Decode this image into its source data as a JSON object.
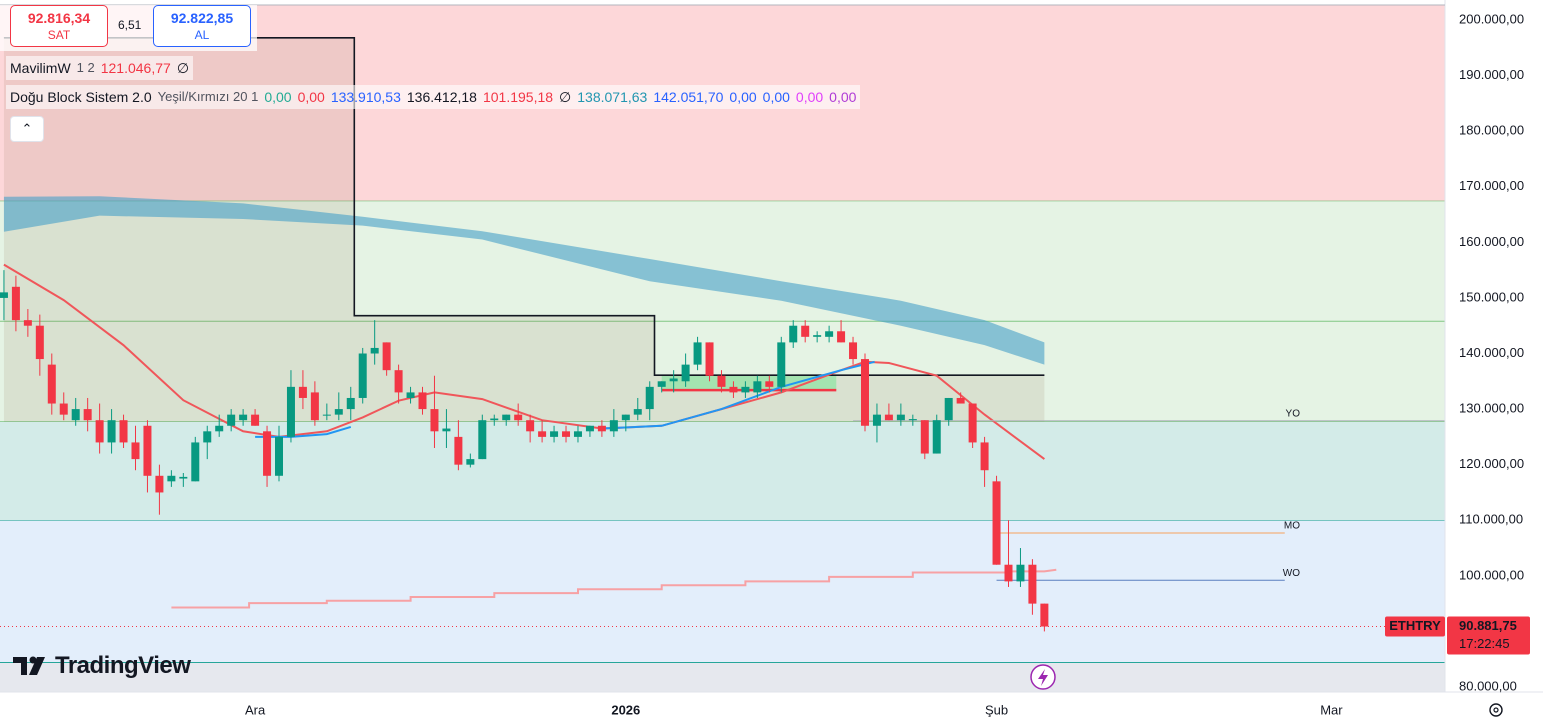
{
  "header": {
    "sell_price": "92.816,34",
    "sell_label": "SAT",
    "spread": "6,51",
    "buy_price": "92.822,85",
    "buy_label": "AL"
  },
  "legend": [
    {
      "name": "MavilimW",
      "params": "1 2",
      "values": [
        {
          "text": "121.046,77",
          "color": "#f23645"
        },
        {
          "text": "∅",
          "color": "#131722"
        }
      ]
    },
    {
      "name": "Doğu Block Sistem 2.0",
      "params": "Yeşil/Kırmızı 20 1",
      "values": [
        {
          "text": "0,00",
          "color": "#22ab94"
        },
        {
          "text": "0,00",
          "color": "#f23645"
        },
        {
          "text": "133.910,53",
          "color": "#2962ff"
        },
        {
          "text": "136.412,18",
          "color": "#131722"
        },
        {
          "text": "101.195,18",
          "color": "#f23645"
        },
        {
          "text": "∅",
          "color": "#131722"
        },
        {
          "text": "138.071,63",
          "color": "#2196b0"
        },
        {
          "text": "142.051,70",
          "color": "#2962ff"
        },
        {
          "text": "0,00",
          "color": "#2962ff"
        },
        {
          "text": "0,00",
          "color": "#2962ff"
        },
        {
          "text": "0,00",
          "color": "#e040fb"
        },
        {
          "text": "0,00",
          "color": "#b03cd6"
        }
      ]
    }
  ],
  "logo": "TradingView",
  "chart_data": {
    "type": "candlestick",
    "symbol": "ETHTRY",
    "countdown": "17:22:45",
    "up_color": "#089981",
    "down_color": "#f23645",
    "x": [
      0,
      1,
      2,
      3,
      4,
      5,
      6,
      7,
      8,
      9,
      10,
      11,
      12,
      13,
      14,
      15,
      16,
      17,
      18,
      19,
      20,
      21,
      22,
      23,
      24,
      25,
      26,
      27,
      28,
      29,
      30,
      31,
      32,
      33,
      34,
      35,
      36,
      37,
      38,
      39,
      40,
      41,
      42,
      43,
      44,
      45,
      46,
      47,
      48,
      49,
      50,
      51,
      52,
      53,
      54,
      55,
      56,
      57,
      58,
      59,
      60,
      61,
      62,
      63,
      64,
      65,
      66,
      67,
      68,
      69,
      70,
      71,
      72,
      73,
      74,
      75,
      76,
      77,
      78,
      79,
      80,
      81,
      82,
      83,
      84,
      85,
      86,
      87
    ],
    "open": [
      150000,
      152000,
      146000,
      145000,
      138000,
      131000,
      128000,
      130000,
      128000,
      124000,
      128000,
      124000,
      127000,
      118000,
      117000,
      117500,
      117000,
      124000,
      126000,
      127000,
      128000,
      129000,
      126000,
      118000,
      125000,
      134000,
      133000,
      129000,
      129000,
      130000,
      132000,
      140000,
      142000,
      137000,
      132000,
      133000,
      130000,
      126000,
      125000,
      120000,
      121000,
      128000,
      128000,
      129000,
      128000,
      126000,
      125000,
      126000,
      125000,
      126000,
      127000,
      126000,
      128000,
      129000,
      130000,
      134000,
      135000,
      135000,
      138000,
      142000,
      136000,
      134000,
      133000,
      133000,
      135000,
      134000,
      142000,
      145000,
      143000,
      143000,
      144000,
      142000,
      139000,
      127000,
      129000,
      128000,
      128000,
      128000,
      122000,
      128000,
      132000,
      131000,
      124000,
      117000,
      102000,
      99000,
      102000,
      95000
    ],
    "high": [
      155000,
      154000,
      148000,
      147000,
      140000,
      133000,
      132000,
      132000,
      131000,
      130000,
      129000,
      127000,
      128000,
      120000,
      119000,
      118500,
      125000,
      127000,
      129000,
      130000,
      130000,
      130000,
      127000,
      127000,
      137000,
      137000,
      135000,
      131000,
      133000,
      134000,
      141000,
      146000,
      142000,
      138000,
      134000,
      134000,
      136000,
      130000,
      128000,
      122000,
      129000,
      129000,
      129000,
      131000,
      129000,
      128000,
      127000,
      127000,
      127000,
      127000,
      128000,
      130000,
      129000,
      132000,
      135000,
      135000,
      137000,
      140000,
      143000,
      142000,
      137000,
      135000,
      135000,
      136000,
      136000,
      143000,
      146000,
      146000,
      144000,
      145000,
      146000,
      143000,
      140000,
      131000,
      131000,
      131000,
      129000,
      128000,
      129000,
      132000,
      133000,
      131000,
      125000,
      118000,
      110000,
      105000,
      103000,
      95000
    ],
    "low": [
      146000,
      144000,
      143000,
      136000,
      129000,
      128000,
      127000,
      126000,
      122000,
      122000,
      123000,
      119000,
      115000,
      111000,
      116000,
      116000,
      117000,
      121000,
      125000,
      126000,
      127000,
      127000,
      116000,
      117000,
      124000,
      130000,
      127000,
      128000,
      128000,
      128000,
      131000,
      138000,
      136000,
      131000,
      131000,
      129000,
      123000,
      123000,
      119000,
      119500,
      121000,
      127000,
      127000,
      127000,
      124000,
      124000,
      124000,
      124000,
      124000,
      125000,
      125000,
      125000,
      126000,
      128000,
      128000,
      133000,
      133000,
      134000,
      137000,
      135000,
      133000,
      132000,
      132000,
      132000,
      133000,
      133000,
      141000,
      142000,
      142000,
      142000,
      142000,
      138000,
      126000,
      124000,
      128000,
      127000,
      127000,
      121000,
      122000,
      127000,
      131000,
      123000,
      116000,
      102000,
      98000,
      98000,
      93000,
      90000
    ],
    "close": [
      151000,
      146000,
      145000,
      139000,
      131000,
      129000,
      130000,
      128000,
      124000,
      128000,
      124000,
      121000,
      118000,
      115000,
      118000,
      117800,
      124000,
      126000,
      127000,
      129000,
      129000,
      127000,
      118000,
      125000,
      134000,
      132000,
      128000,
      129000,
      130000,
      132000,
      140000,
      141000,
      137000,
      133000,
      133000,
      130000,
      126000,
      126500,
      120000,
      121000,
      128000,
      128300,
      129000,
      128000,
      126000,
      125000,
      126000,
      125000,
      126000,
      127000,
      126000,
      128000,
      129000,
      130000,
      134000,
      135000,
      135500,
      138000,
      142000,
      136000,
      134000,
      133000,
      134000,
      135000,
      134000,
      142000,
      145000,
      143000,
      143300,
      144000,
      142000,
      139000,
      127000,
      129000,
      128000,
      129000,
      128200,
      122000,
      128000,
      132000,
      131000,
      124000,
      119000,
      102000,
      99000,
      102000,
      95000,
      90881.75
    ],
    "xlim": [
      -0.33,
      120.5
    ],
    "xticks": [
      {
        "value": 21,
        "label": "Ara"
      },
      {
        "value": 52,
        "label": "2026"
      },
      {
        "value": 83,
        "label": "Şub"
      },
      {
        "value": 111,
        "label": "Mar"
      }
    ],
    "ylim": [
      79100,
      202700
    ],
    "yticks": [
      {
        "value": 80000,
        "label": "80.000,00"
      },
      {
        "value": 90000,
        "label": "90.000,00"
      },
      {
        "value": 100000,
        "label": "100.000,00"
      },
      {
        "value": 110000,
        "label": "110.000,00"
      },
      {
        "value": 120000,
        "label": "120.000,00"
      },
      {
        "value": 130000,
        "label": "130.000,00"
      },
      {
        "value": 140000,
        "label": "140.000,00"
      },
      {
        "value": 150000,
        "label": "150.000,00"
      },
      {
        "value": 160000,
        "label": "160.000,00"
      },
      {
        "value": 170000,
        "label": "170.000,00"
      },
      {
        "value": 180000,
        "label": "180.000,00"
      },
      {
        "value": 190000,
        "label": "190.000,00"
      },
      {
        "value": 200000,
        "label": "200.000,00"
      }
    ],
    "last_price": {
      "value": 90881.75,
      "label": "90.881,75"
    },
    "price_color": "#f23645",
    "zones": [
      {
        "from": 167400,
        "to": 202700,
        "color": "#fdd7d9",
        "line": "#4caf50"
      },
      {
        "from": 127700,
        "to": 167400,
        "color": "#e5f3e4",
        "line": "#4caf50"
      },
      {
        "from": 109900,
        "to": 127700,
        "color": "#d3ebe8",
        "line": "#26a69a"
      },
      {
        "from": 84400,
        "to": 109900,
        "color": "#e3eefb",
        "line": "#26a69a"
      }
    ],
    "guides": [
      {
        "value": 145800,
        "color": "#81c784"
      }
    ],
    "cloud": {
      "color": "rgba(70,160,200,0.6)",
      "x": [
        0,
        8,
        20,
        30,
        40,
        54,
        65,
        75,
        82,
        87
      ],
      "upper": [
        168200,
        168300,
        167000,
        164600,
        162000,
        157000,
        153000,
        149500,
        146000,
        142000
      ],
      "lower": [
        161900,
        164800,
        164200,
        163000,
        160500,
        153000,
        149500,
        145000,
        141500,
        138000
      ]
    },
    "step": {
      "color": "#131722",
      "fill": "rgba(140,105,75,0.13)",
      "fill_to": 127700,
      "x": [
        0,
        29.3,
        29.3,
        54.4,
        54.4,
        87
      ],
      "values": [
        196800,
        196800,
        146800,
        146800,
        136100,
        136100
      ]
    },
    "box": {
      "x": [
        55,
        69.6
      ],
      "low": 133400,
      "high": 136100,
      "color": "rgba(120,230,150,0.55)",
      "line_color": "#f23645"
    },
    "lines": [
      {
        "color": "#f0565a",
        "x": [
          0,
          5,
          10,
          15,
          20,
          23,
          27,
          30,
          33,
          36,
          40,
          45,
          50,
          55,
          60,
          65,
          70,
          72,
          74,
          78,
          82,
          87
        ],
        "values": [
          156000,
          149600,
          141500,
          131600,
          126000,
          125000,
          126000,
          128500,
          131500,
          133000,
          131800,
          128000,
          126500,
          127000,
          130000,
          133000,
          137000,
          138500,
          138300,
          136000,
          129000,
          121000
        ]
      },
      {
        "color": "#2196f3",
        "x": [
          21,
          24,
          27,
          29,
          40,
          50,
          55,
          60,
          65,
          70,
          72.8
        ],
        "values": [
          125000,
          125000,
          125500,
          126800,
          null,
          126500,
          127000,
          130000,
          134000,
          137000,
          138500
        ]
      },
      {
        "color": "#f7a1a4",
        "x": [
          14,
          20.5,
          20.5,
          27,
          27,
          34,
          34,
          41,
          41,
          48,
          48,
          55,
          55,
          62,
          62,
          69,
          69,
          76,
          76,
          84,
          84,
          87,
          88
        ],
        "values": [
          94300,
          94300,
          95100,
          95100,
          95500,
          95500,
          96200,
          96200,
          96900,
          96900,
          97600,
          97600,
          98300,
          98300,
          99000,
          99000,
          99800,
          99800,
          100600,
          100600,
          100800,
          100800,
          101100
        ]
      }
    ],
    "levels": [
      {
        "label": "YO",
        "value": 127900,
        "color": "#b2b5be",
        "from": 71,
        "to": 120.5
      },
      {
        "label": "MO",
        "value": 107700,
        "color": "#f7a35c",
        "from": 83,
        "to": 107.1
      },
      {
        "label": "WO",
        "value": 99200,
        "color": "#5b7fbf",
        "from": 83,
        "to": 107.1
      }
    ]
  }
}
